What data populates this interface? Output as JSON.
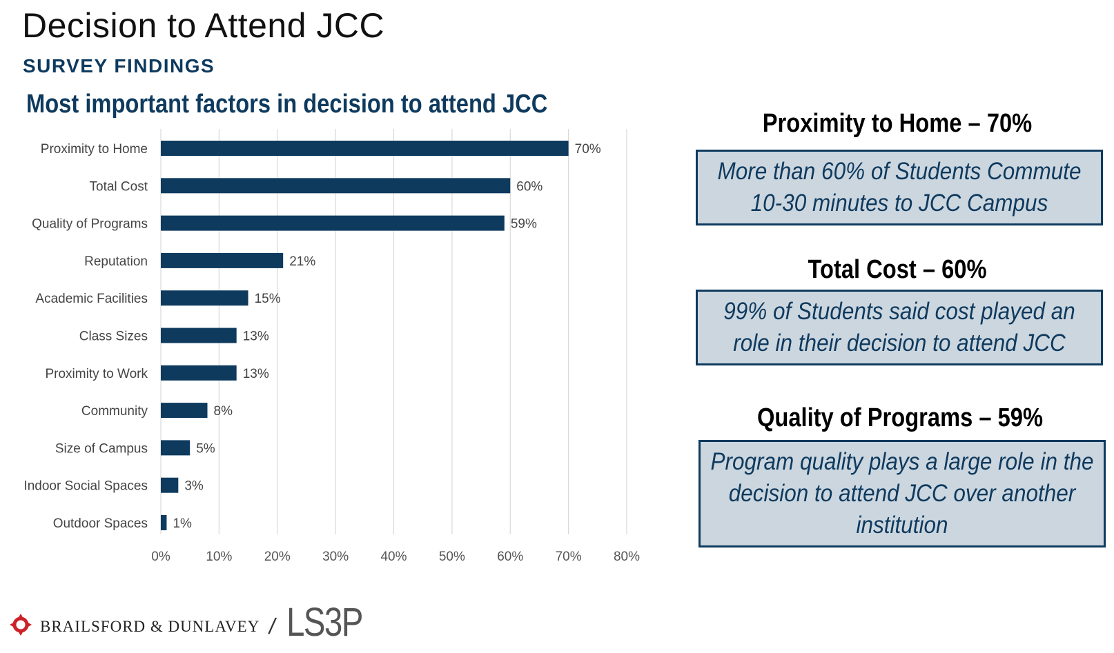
{
  "page": {
    "title": "Decision to Attend JCC",
    "subtitle": "SURVEY FINDINGS"
  },
  "chart_data": {
    "type": "bar",
    "orientation": "horizontal",
    "title": "Most important factors in decision to attend JCC",
    "categories": [
      "Proximity to Home",
      "Total Cost",
      "Quality of Programs",
      "Reputation",
      "Academic Facilities",
      "Class Sizes",
      "Proximity to Work",
      "Community",
      "Size of Campus",
      "Indoor Social Spaces",
      "Outdoor Spaces"
    ],
    "values": [
      70,
      60,
      59,
      21,
      15,
      13,
      13,
      8,
      5,
      3,
      1
    ],
    "value_labels": [
      "70%",
      "60%",
      "59%",
      "21%",
      "15%",
      "13%",
      "13%",
      "8%",
      "5%",
      "3%",
      "1%"
    ],
    "xlim": [
      0,
      80
    ],
    "x_ticks": [
      "0%",
      "10%",
      "20%",
      "30%",
      "40%",
      "50%",
      "60%",
      "70%",
      "80%"
    ],
    "grid": true,
    "bar_color": "#0e3a5e"
  },
  "findings": [
    {
      "heading": "Proximity to Home – 70%",
      "text": "More than 60% of Students Commute 10-30 minutes to JCC Campus"
    },
    {
      "heading": "Total Cost – 60%",
      "text": "99% of Students said cost played an role in their decision to attend JCC"
    },
    {
      "heading": "Quality of Programs – 59%",
      "text": "Program quality plays a large role in the decision to attend JCC over another institution"
    }
  ],
  "footer": {
    "brand": "BRAILSFORD & DUNLAVEY",
    "separator": "/",
    "partner": "LS3P"
  },
  "colors": {
    "primary": "#0e3a5e",
    "box_fill": "#ccd6df",
    "logo_red": "#cc2229"
  }
}
